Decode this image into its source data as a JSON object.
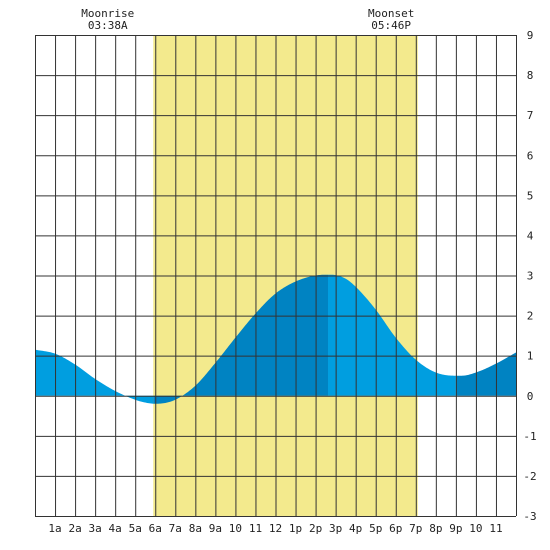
{
  "chart_data": {
    "type": "area",
    "title": "",
    "xlabel": "",
    "ylabel": "",
    "x_tick_labels": [
      "1a",
      "2a",
      "3a",
      "4a",
      "5a",
      "6a",
      "7a",
      "8a",
      "9a",
      "10",
      "11",
      "12",
      "1p",
      "2p",
      "3p",
      "4p",
      "5p",
      "6p",
      "7p",
      "8p",
      "9p",
      "10",
      "11"
    ],
    "xlim": [
      0,
      24
    ],
    "ylim": [
      -3,
      9
    ],
    "y_ticks": [
      -3,
      -2,
      -1,
      0,
      1,
      2,
      3,
      4,
      5,
      6,
      7,
      8,
      9
    ],
    "y_axis_side": "right",
    "grid": true,
    "moonrise": {
      "label": "Moonrise",
      "time_text": "03:38A",
      "hour": 3.63
    },
    "moonset": {
      "label": "Moonset",
      "time_text": "05:46P",
      "hour": 17.77
    },
    "daylight": {
      "start_hour": 5.9,
      "end_hour": 19.1
    },
    "tide_series": {
      "name": "",
      "x": [
        0,
        1,
        2,
        3,
        4,
        5,
        5.5,
        6,
        6.5,
        7,
        8,
        9,
        10,
        11,
        12,
        13,
        14,
        14.8,
        15.5,
        16,
        17,
        18,
        19,
        20,
        21,
        21.3,
        22,
        23,
        24
      ],
      "y": [
        1.15,
        1.05,
        0.78,
        0.42,
        0.12,
        -0.1,
        -0.17,
        -0.2,
        -0.18,
        -0.1,
        0.25,
        0.82,
        1.45,
        2.05,
        2.55,
        2.85,
        3.0,
        3.02,
        2.92,
        2.72,
        2.15,
        1.45,
        0.9,
        0.58,
        0.5,
        0.5,
        0.58,
        0.8,
        1.08
      ]
    },
    "colors": {
      "daylight_band": "#f3ea8d",
      "tide_light": "#009ee0",
      "tide_dark": "#0083c2",
      "grid": "#333333",
      "background": "#ffffff"
    }
  }
}
